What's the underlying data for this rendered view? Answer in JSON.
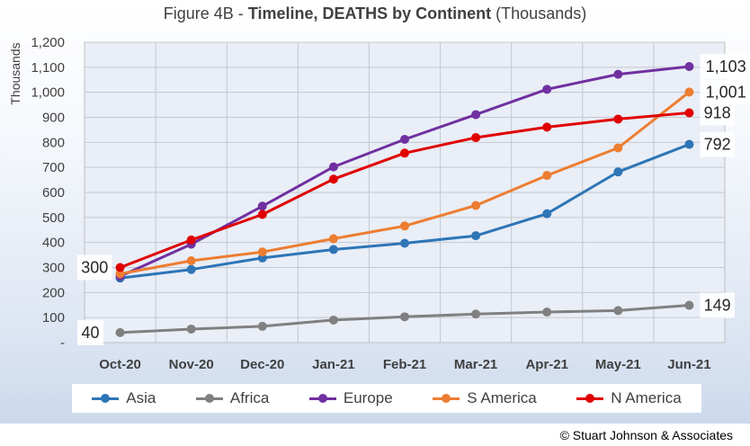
{
  "title": {
    "prefix": "Figure 4B - ",
    "bold": "Timeline, DEATHS by Continent",
    "suffix": " (Thousands)"
  },
  "credit": "© Stuart Johnson & Associates",
  "chart_data": {
    "type": "line",
    "ylabel": "Thousands",
    "ylim": [
      0,
      1200
    ],
    "yticks": [
      "-",
      "100",
      "200",
      "300",
      "400",
      "500",
      "600",
      "700",
      "800",
      "900",
      "1,000",
      "1,100",
      "1,200"
    ],
    "grid": true,
    "legend_position": "bottom",
    "categories": [
      "Oct-20",
      "Nov-20",
      "Dec-20",
      "Jan-21",
      "Feb-21",
      "Mar-21",
      "Apr-21",
      "May-21",
      "Jun-21"
    ],
    "series": [
      {
        "name": "Asia",
        "color": "#2e75b6",
        "values": [
          258,
          292,
          338,
          372,
          397,
          427,
          515,
          682,
          792
        ]
      },
      {
        "name": "Africa",
        "color": "#808080",
        "values": [
          40,
          54,
          65,
          90,
          103,
          114,
          122,
          128,
          149
        ]
      },
      {
        "name": "Europe",
        "color": "#7030a0",
        "values": [
          265,
          393,
          545,
          702,
          812,
          911,
          1012,
          1072,
          1103
        ]
      },
      {
        "name": "S America",
        "color": "#ed7d31",
        "values": [
          275,
          327,
          362,
          415,
          466,
          548,
          668,
          778,
          1001
        ]
      },
      {
        "name": "N America",
        "color": "#e00000",
        "values": [
          300,
          410,
          512,
          653,
          757,
          819,
          861,
          893,
          918
        ]
      }
    ],
    "annotations": [
      {
        "text": "300",
        "series": "N America",
        "index": 0,
        "side": "left"
      },
      {
        "text": "40",
        "series": "Africa",
        "index": 0,
        "side": "left"
      },
      {
        "text": "1,103",
        "series": "Europe",
        "index": 8,
        "side": "right"
      },
      {
        "text": "1,001",
        "series": "S America",
        "index": 8,
        "side": "right"
      },
      {
        "text": "918",
        "series": "N America",
        "index": 8,
        "side": "right"
      },
      {
        "text": "792",
        "series": "Asia",
        "index": 8,
        "side": "right"
      },
      {
        "text": "149",
        "series": "Africa",
        "index": 8,
        "side": "right"
      }
    ]
  }
}
